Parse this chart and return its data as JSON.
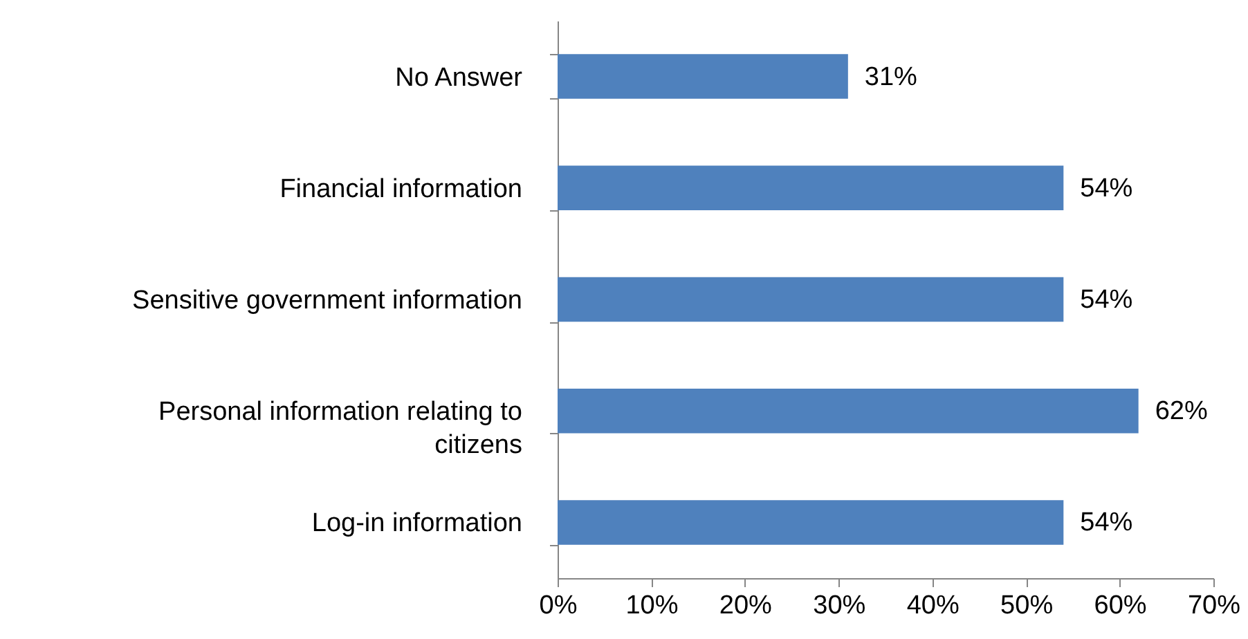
{
  "chart_data": {
    "type": "bar",
    "orientation": "horizontal",
    "categories": [
      "No Answer",
      "Financial information",
      "Sensitive government information",
      "Personal information relating to citizens",
      "Log-in information"
    ],
    "values": [
      31,
      54,
      54,
      62,
      54
    ],
    "value_labels": [
      "31%",
      "54%",
      "54%",
      "62%",
      "54%"
    ],
    "color": "#4f81bd",
    "xlim": [
      0,
      70
    ],
    "xticks": [
      {
        "value": 0,
        "label": "0%"
      },
      {
        "value": 10,
        "label": "10%"
      },
      {
        "value": 20,
        "label": "20%"
      },
      {
        "value": 30,
        "label": "30%"
      },
      {
        "value": 40,
        "label": "40%"
      },
      {
        "value": 50,
        "label": "50%"
      },
      {
        "value": 60,
        "label": "60%"
      },
      {
        "value": 70,
        "label": "70%"
      }
    ],
    "grid": false
  }
}
